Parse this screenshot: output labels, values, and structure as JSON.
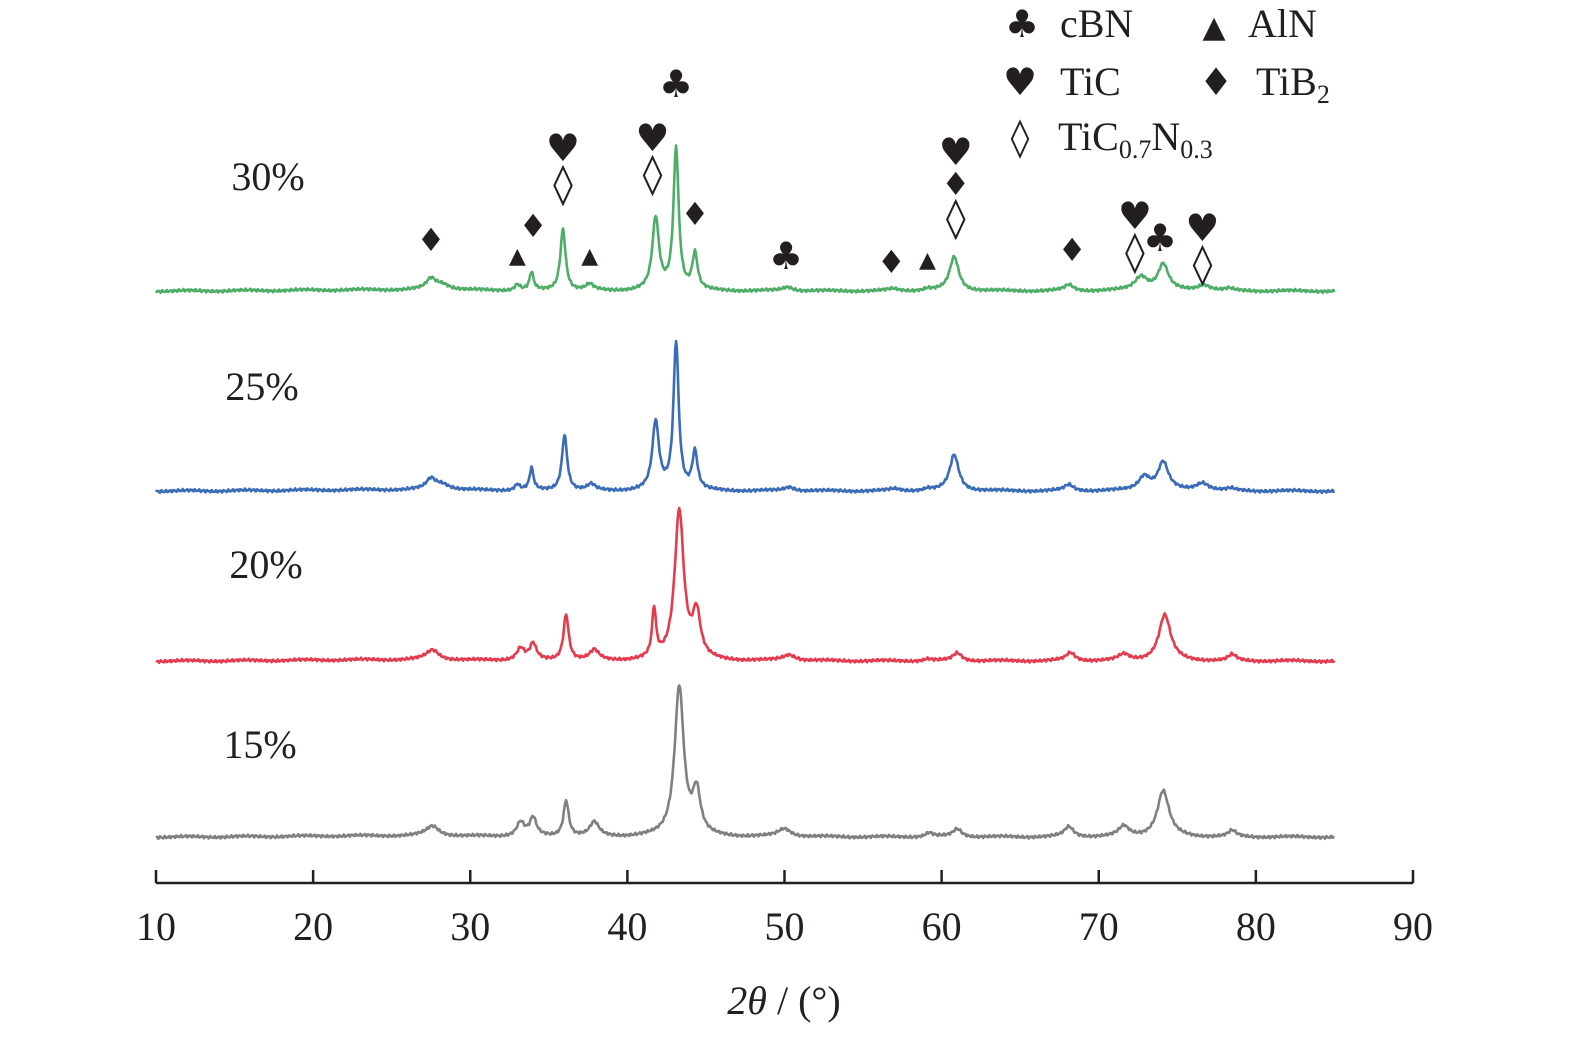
{
  "chart_data": {
    "type": "line",
    "title": "",
    "xlabel": {
      "italic": "2θ",
      "rest": " / (°)"
    },
    "ylabel": "",
    "xlim": [
      10,
      90
    ],
    "xticks": [
      10,
      20,
      30,
      40,
      50,
      60,
      70,
      80,
      90
    ],
    "y_axis_shown": false,
    "grid": false,
    "legend_placement": "top-right",
    "legend": [
      {
        "phase": "cBN",
        "symbol": "club",
        "text": "cBN",
        "sub": []
      },
      {
        "phase": "AlN",
        "symbol": "triangle",
        "text": "AlN",
        "sub": []
      },
      {
        "phase": "TiC",
        "symbol": "heart",
        "text": "TiC",
        "sub": []
      },
      {
        "phase": "TiB2",
        "symbol": "diamond",
        "text": "TiB",
        "sub": [
          "2"
        ]
      },
      {
        "phase": "TiC0.7N0.3",
        "symbol": "diamond-open",
        "text": "TiC",
        "sub": [
          "0.7",
          "N",
          "0.3"
        ]
      }
    ],
    "series": [
      {
        "name": "30%",
        "color": "#4ead67",
        "baseline": 1.0,
        "peaks": [
          [
            27.5,
            0.05,
            0.35
          ],
          [
            28.2,
            0.03,
            0.6
          ],
          [
            33.0,
            0.03,
            0.2
          ],
          [
            33.9,
            0.09,
            0.15
          ],
          [
            35.9,
            0.31,
            0.2
          ],
          [
            37.6,
            0.03,
            0.3
          ],
          [
            41.8,
            0.36,
            0.25
          ],
          [
            43.1,
            0.71,
            0.2
          ],
          [
            44.3,
            0.18,
            0.2
          ],
          [
            50.2,
            0.02,
            0.4
          ],
          [
            56.9,
            0.01,
            0.4
          ],
          [
            59.1,
            0.01,
            0.3
          ],
          [
            60.8,
            0.17,
            0.35
          ],
          [
            68.1,
            0.03,
            0.35
          ],
          [
            72.7,
            0.07,
            0.5
          ],
          [
            74.1,
            0.13,
            0.4
          ],
          [
            76.7,
            0.03,
            0.5
          ],
          [
            78.3,
            0.01,
            0.3
          ]
        ]
      },
      {
        "name": "25%",
        "color": "#3b6cb7",
        "baseline": 0.0,
        "peaks": [
          [
            27.5,
            0.05,
            0.35
          ],
          [
            28.2,
            0.03,
            0.6
          ],
          [
            33.0,
            0.03,
            0.2
          ],
          [
            33.9,
            0.11,
            0.15
          ],
          [
            36.0,
            0.28,
            0.2
          ],
          [
            37.7,
            0.03,
            0.3
          ],
          [
            41.8,
            0.34,
            0.25
          ],
          [
            43.1,
            0.74,
            0.2
          ],
          [
            44.3,
            0.19,
            0.2
          ],
          [
            50.3,
            0.02,
            0.4
          ],
          [
            57.0,
            0.01,
            0.4
          ],
          [
            59.1,
            0.01,
            0.3
          ],
          [
            60.8,
            0.18,
            0.35
          ],
          [
            68.1,
            0.03,
            0.35
          ],
          [
            72.9,
            0.07,
            0.45
          ],
          [
            74.1,
            0.14,
            0.4
          ],
          [
            76.6,
            0.04,
            0.5
          ],
          [
            78.4,
            0.01,
            0.3
          ]
        ]
      },
      {
        "name": "20%",
        "color": "#e23c4e",
        "baseline": -0.85,
        "peaks": [
          [
            27.6,
            0.05,
            0.5
          ],
          [
            33.2,
            0.06,
            0.3
          ],
          [
            34.0,
            0.08,
            0.25
          ],
          [
            36.1,
            0.23,
            0.2
          ],
          [
            37.9,
            0.05,
            0.35
          ],
          [
            41.7,
            0.24,
            0.15
          ],
          [
            43.3,
            0.75,
            0.35
          ],
          [
            44.4,
            0.22,
            0.3
          ],
          [
            50.3,
            0.03,
            0.5
          ],
          [
            59.1,
            0.01,
            0.3
          ],
          [
            61.0,
            0.04,
            0.35
          ],
          [
            68.2,
            0.04,
            0.35
          ],
          [
            71.6,
            0.03,
            0.4
          ],
          [
            74.2,
            0.23,
            0.45
          ],
          [
            78.5,
            0.03,
            0.3
          ]
        ]
      },
      {
        "name": "15%",
        "color": "#808080",
        "baseline": -1.73,
        "peaks": [
          [
            27.6,
            0.05,
            0.5
          ],
          [
            33.2,
            0.07,
            0.3
          ],
          [
            34.0,
            0.09,
            0.25
          ],
          [
            36.1,
            0.18,
            0.2
          ],
          [
            37.9,
            0.07,
            0.35
          ],
          [
            43.3,
            0.75,
            0.35
          ],
          [
            44.4,
            0.21,
            0.3
          ],
          [
            50.0,
            0.04,
            0.5
          ],
          [
            59.2,
            0.02,
            0.3
          ],
          [
            61.0,
            0.04,
            0.35
          ],
          [
            68.1,
            0.05,
            0.35
          ],
          [
            71.6,
            0.05,
            0.4
          ],
          [
            74.1,
            0.23,
            0.45
          ],
          [
            78.5,
            0.03,
            0.3
          ]
        ]
      }
    ],
    "annotations": [
      {
        "symbols": [
          "diamond"
        ],
        "x": 27.5,
        "y": 1.2
      },
      {
        "symbols": [
          "triangle"
        ],
        "x": 33.0,
        "y": 1.14
      },
      {
        "symbols": [
          "diamond"
        ],
        "x": 34.0,
        "y": 1.27
      },
      {
        "symbols": [
          "heart",
          "diamond-open"
        ],
        "x": 35.9,
        "y": 1.47
      },
      {
        "symbols": [
          "triangle"
        ],
        "x": 37.6,
        "y": 1.14
      },
      {
        "symbols": [
          "heart",
          "diamond-open"
        ],
        "x": 41.6,
        "y": 1.52
      },
      {
        "symbols": [
          "club"
        ],
        "x": 43.1,
        "y": 1.97
      },
      {
        "symbols": [
          "diamond"
        ],
        "x": 44.3,
        "y": 1.33
      },
      {
        "symbols": [
          "club"
        ],
        "x": 50.1,
        "y": 1.11
      },
      {
        "symbols": [
          "diamond"
        ],
        "x": 56.8,
        "y": 1.09
      },
      {
        "symbols": [
          "triangle"
        ],
        "x": 59.1,
        "y": 1.12
      },
      {
        "symbols": [
          "heart",
          "diamond",
          "diamond-open"
        ],
        "x": 60.9,
        "y": 1.3
      },
      {
        "symbols": [
          "diamond"
        ],
        "x": 68.3,
        "y": 1.15
      },
      {
        "symbols": [
          "heart",
          "diamond-open"
        ],
        "x": 72.3,
        "y": 1.13
      },
      {
        "symbols": [
          "club"
        ],
        "x": 73.9,
        "y": 1.2
      },
      {
        "symbols": [
          "heart",
          "diamond-open"
        ],
        "x": 76.6,
        "y": 1.07
      }
    ]
  }
}
